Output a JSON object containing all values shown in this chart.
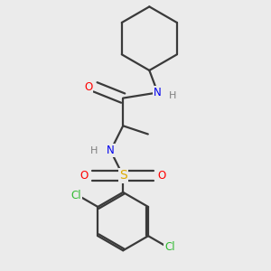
{
  "background_color": "#ebebeb",
  "bond_color": "#3a3a3a",
  "colors": {
    "N": "#0000ee",
    "O": "#ff0000",
    "S": "#ddaa00",
    "Cl": "#33bb33",
    "C": "#3a3a3a",
    "H": "#808080"
  },
  "figsize": [
    3.0,
    3.0
  ],
  "dpi": 100
}
